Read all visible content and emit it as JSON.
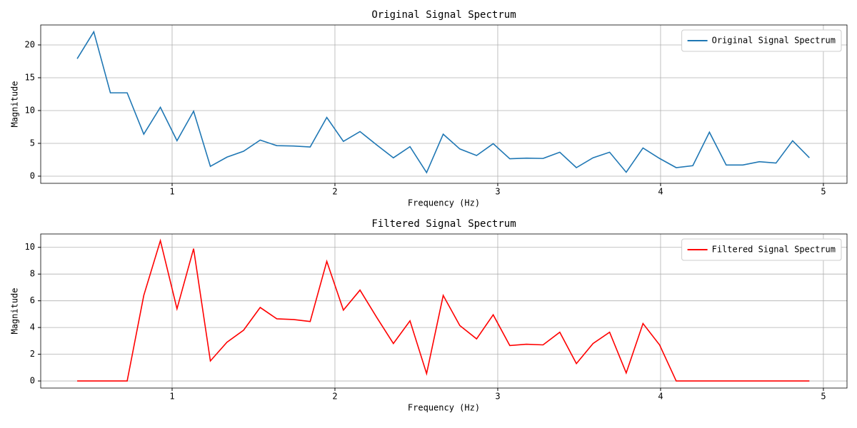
{
  "chart_data": [
    {
      "type": "line",
      "title": "Original Signal Spectrum",
      "x_label": "Frequency (Hz)",
      "y_label": "Magnitude",
      "x": [
        0.417,
        0.519,
        0.621,
        0.724,
        0.826,
        0.928,
        1.03,
        1.132,
        1.235,
        1.337,
        1.439,
        1.541,
        1.643,
        1.746,
        1.848,
        1.95,
        2.052,
        2.154,
        2.257,
        2.359,
        2.461,
        2.563,
        2.665,
        2.767,
        2.87,
        2.972,
        3.074,
        3.176,
        3.278,
        3.381,
        3.483,
        3.585,
        3.687,
        3.789,
        3.892,
        3.994,
        4.096,
        4.198,
        4.3,
        4.403,
        4.505,
        4.607,
        4.709,
        4.811,
        4.914
      ],
      "series": [
        {
          "name": "Original Signal Spectrum",
          "color": "#1f77b4",
          "values": [
            17.9,
            22.0,
            12.7,
            12.7,
            6.4,
            10.5,
            5.4,
            9.9,
            1.5,
            2.9,
            3.8,
            5.5,
            4.65,
            4.6,
            4.45,
            8.95,
            5.3,
            6.8,
            4.75,
            2.8,
            4.5,
            0.55,
            6.4,
            4.15,
            3.15,
            4.95,
            2.65,
            2.75,
            2.7,
            3.65,
            1.3,
            2.8,
            3.65,
            0.6,
            4.3,
            2.7,
            1.3,
            1.6,
            6.7,
            1.7,
            1.7,
            2.2,
            2.0,
            5.4,
            2.8
          ]
        }
      ],
      "xlim": [
        0.193,
        5.145
      ],
      "ylim": [
        -1.09,
        23.04
      ],
      "xticks": [
        1,
        2,
        3,
        4,
        5
      ],
      "yticks": [
        0,
        5,
        10,
        15,
        20
      ],
      "grid": true,
      "legend": "upper right"
    },
    {
      "type": "line",
      "title": "Filtered Signal Spectrum",
      "x_label": "Frequency (Hz)",
      "y_label": "Magnitude",
      "x": [
        0.417,
        0.519,
        0.621,
        0.724,
        0.826,
        0.928,
        1.03,
        1.132,
        1.235,
        1.337,
        1.439,
        1.541,
        1.643,
        1.746,
        1.848,
        1.95,
        2.052,
        2.154,
        2.257,
        2.359,
        2.461,
        2.563,
        2.665,
        2.767,
        2.87,
        2.972,
        3.074,
        3.176,
        3.278,
        3.381,
        3.483,
        3.585,
        3.687,
        3.789,
        3.892,
        3.994,
        4.096,
        4.198,
        4.3,
        4.403,
        4.505,
        4.607,
        4.709,
        4.811,
        4.914
      ],
      "series": [
        {
          "name": "Filtered Signal Spectrum",
          "color": "#ff0000",
          "values": [
            0,
            0,
            0,
            0,
            6.4,
            10.5,
            5.4,
            9.9,
            1.5,
            2.9,
            3.8,
            5.5,
            4.65,
            4.6,
            4.45,
            8.95,
            5.3,
            6.8,
            4.75,
            2.8,
            4.5,
            0.55,
            6.4,
            4.15,
            3.15,
            4.95,
            2.65,
            2.75,
            2.7,
            3.65,
            1.3,
            2.8,
            3.65,
            0.6,
            4.3,
            2.7,
            0,
            0,
            0,
            0,
            0,
            0,
            0,
            0,
            0
          ]
        }
      ],
      "xlim": [
        0.193,
        5.145
      ],
      "ylim": [
        -0.53,
        11.0
      ],
      "xticks": [
        1,
        2,
        3,
        4,
        5
      ],
      "yticks": [
        0,
        2,
        4,
        6,
        8,
        10
      ],
      "grid": true,
      "legend": "upper right"
    }
  ]
}
